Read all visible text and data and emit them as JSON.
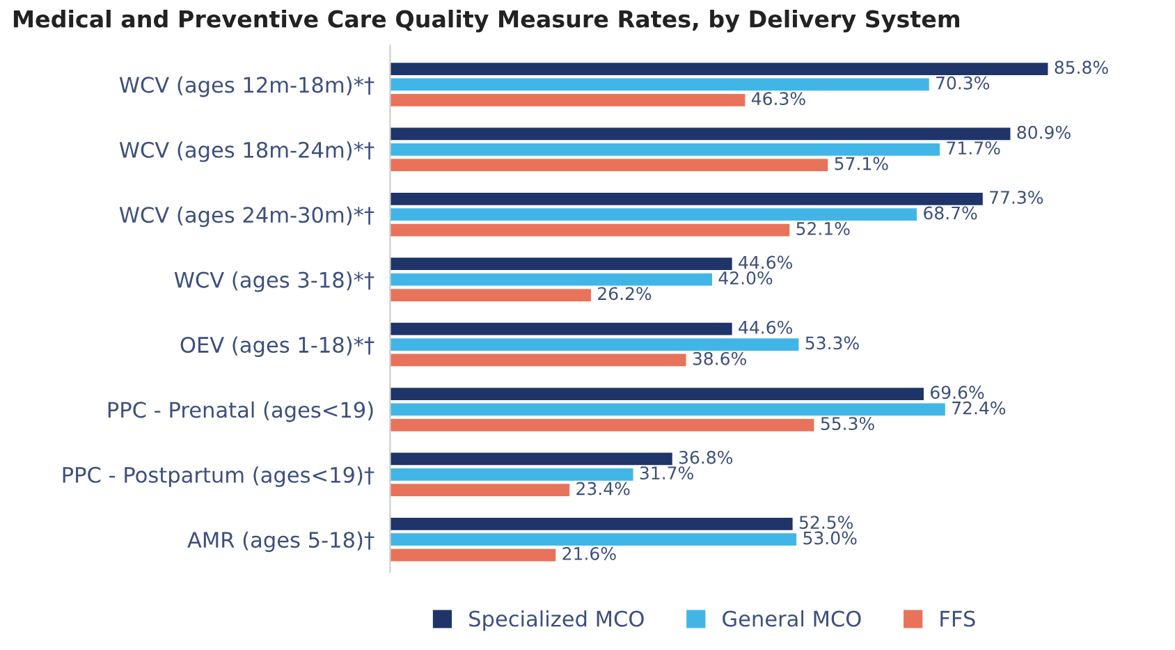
{
  "chart_data": {
    "type": "bar",
    "orientation": "horizontal",
    "title": "Medical and Preventive Care Quality Measure Rates, by Delivery System",
    "categories": [
      "WCV (ages 12m-18m)*†",
      "WCV (ages 18m-24m)*†",
      "WCV (ages 24m-30m)*†",
      "WCV (ages 3-18)*†",
      "OEV (ages 1-18)*†",
      "PPC - Prenatal (ages<19)",
      "PPC - Postpartum (ages<19)†",
      "AMR (ages 5-18)†"
    ],
    "series": [
      {
        "name": "Specialized MCO",
        "color": "#1f3468",
        "values": [
          85.8,
          80.9,
          77.3,
          44.6,
          44.6,
          69.6,
          36.8,
          52.5
        ],
        "value_labels": [
          "85.8%",
          "80.9%",
          "77.3%",
          "44.6%",
          "44.6%",
          "69.6%",
          "36.8%",
          "52.5%"
        ]
      },
      {
        "name": "General MCO",
        "color": "#41b6e6",
        "values": [
          70.3,
          71.7,
          68.7,
          42.0,
          53.3,
          72.4,
          31.7,
          53.0
        ],
        "value_labels": [
          "70.3%",
          "71.7%",
          "68.7%",
          "42.0%",
          "53.3%",
          "72.4%",
          "31.7%",
          "53.0%"
        ]
      },
      {
        "name": "FFS",
        "color": "#e8735a",
        "values": [
          46.3,
          57.1,
          52.1,
          26.2,
          38.6,
          55.3,
          23.4,
          21.6
        ],
        "value_labels": [
          "46.3%",
          "57.1%",
          "52.1%",
          "26.2%",
          "38.6%",
          "55.3%",
          "23.4%",
          "21.6%"
        ]
      }
    ],
    "legend": "bottom",
    "grid": false
  }
}
